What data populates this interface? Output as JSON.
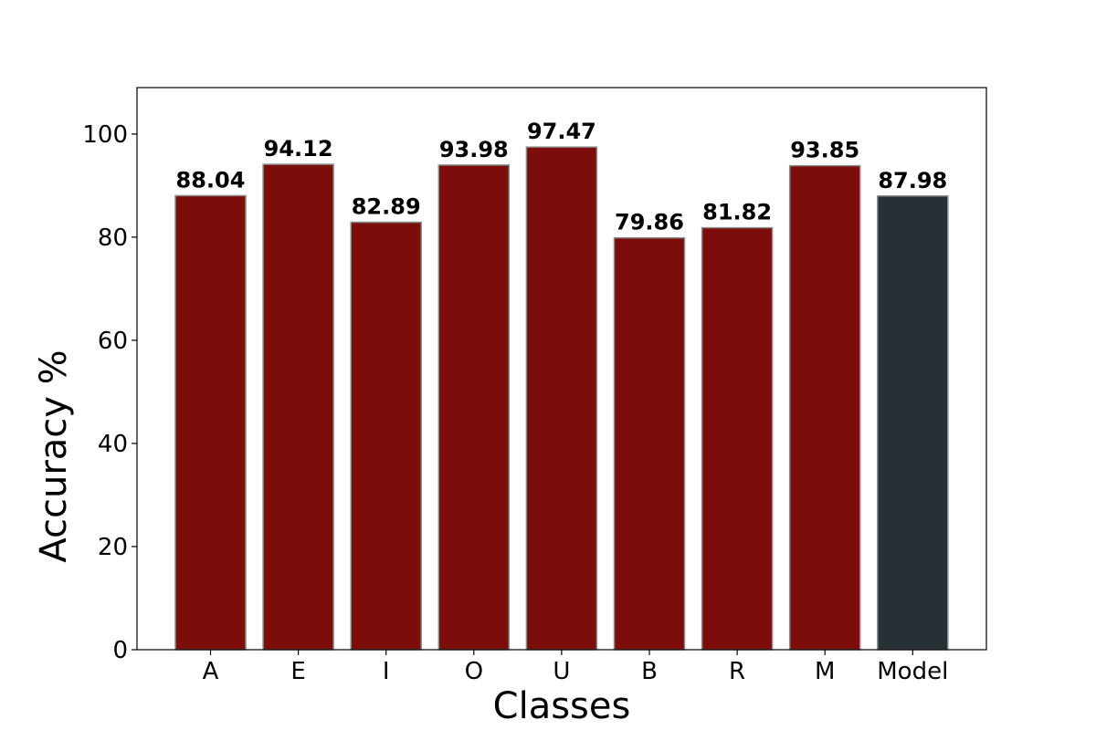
{
  "chart_data": {
    "type": "bar",
    "title": "",
    "xlabel": "Classes",
    "ylabel": "Accuracy %",
    "categories": [
      "A",
      "E",
      "I",
      "O",
      "U",
      "B",
      "R",
      "M",
      "Model"
    ],
    "values": [
      88.04,
      94.12,
      82.89,
      93.98,
      97.47,
      79.86,
      81.82,
      93.85,
      87.98
    ],
    "value_labels": [
      "88.04",
      "94.12",
      "82.89",
      "93.98",
      "97.47",
      "79.86",
      "81.82",
      "93.85",
      "87.98"
    ],
    "ylim": [
      0,
      109
    ],
    "yticks": [
      0,
      20,
      40,
      60,
      80,
      100
    ],
    "ytick_labels": [
      "0",
      "20",
      "40",
      "60",
      "80",
      "100"
    ],
    "grid": false,
    "legend": "none",
    "colors": {
      "class_bar": "#7b0d0b",
      "model_bar": "#263035",
      "bar_edge": "#8a8a8a",
      "axes": "#000000"
    }
  }
}
